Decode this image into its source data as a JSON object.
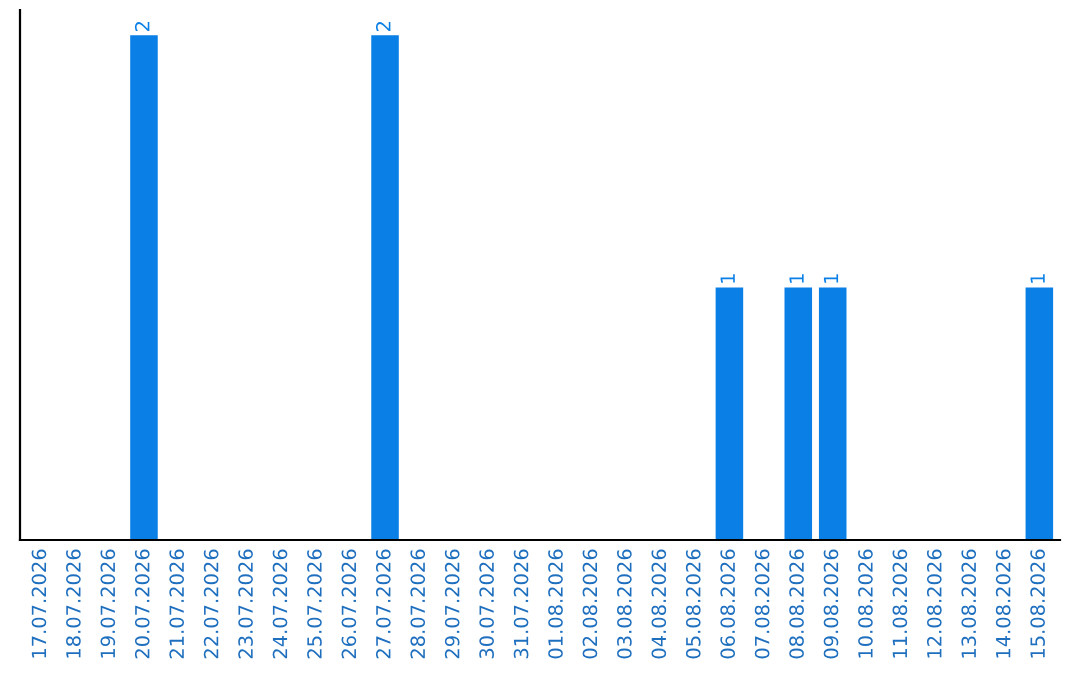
{
  "chart_data": {
    "type": "bar",
    "categories": [
      "17.07.2026",
      "18.07.2026",
      "19.07.2026",
      "20.07.2026",
      "21.07.2026",
      "22.07.2026",
      "23.07.2026",
      "24.07.2026",
      "25.07.2026",
      "26.07.2026",
      "27.07.2026",
      "28.07.2026",
      "29.07.2026",
      "30.07.2026",
      "31.07.2026",
      "01.08.2026",
      "02.08.2026",
      "03.08.2026",
      "04.08.2026",
      "05.08.2026",
      "06.08.2026",
      "07.08.2026",
      "08.08.2026",
      "09.08.2026",
      "10.08.2026",
      "11.08.2026",
      "12.08.2026",
      "13.08.2026",
      "14.08.2026",
      "15.08.2026"
    ],
    "values": [
      0,
      0,
      0,
      2,
      0,
      0,
      0,
      0,
      0,
      0,
      2,
      0,
      0,
      0,
      0,
      0,
      0,
      0,
      0,
      0,
      1,
      0,
      1,
      1,
      0,
      0,
      0,
      0,
      0,
      1
    ],
    "value_labels": [
      null,
      null,
      null,
      "2",
      null,
      null,
      null,
      null,
      null,
      null,
      "2",
      null,
      null,
      null,
      null,
      null,
      null,
      null,
      null,
      null,
      "1",
      null,
      "1",
      "1",
      null,
      null,
      null,
      null,
      null,
      "1"
    ],
    "color": "#0a7fe6",
    "ylim": [
      0,
      2.1
    ],
    "tick_labels": "x",
    "grid": false,
    "legend": false
  }
}
